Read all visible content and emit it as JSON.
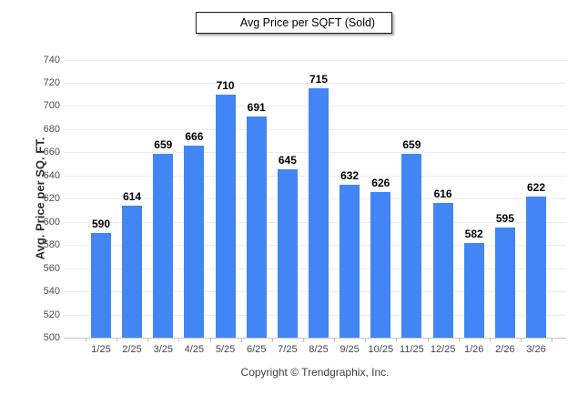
{
  "legend": {
    "label": "Avg Price per SQFT (Sold)",
    "swatch_color": "#4285F4"
  },
  "y_axis_title": "Avg. Price per SQ. FT.",
  "footer": {
    "copyright": "Copyright © Trendgraphix, Inc."
  },
  "colors": {
    "bar": "#4285F4",
    "gridline": "#ededed",
    "axis_line": "#c6c6c6",
    "value_label": "#000000",
    "tick_label": "#4d4d4d",
    "background": "#ffffff"
  },
  "chart_data": {
    "type": "bar",
    "title": "",
    "categories": [
      "1/25",
      "2/25",
      "3/25",
      "4/25",
      "5/25",
      "6/25",
      "7/25",
      "8/25",
      "9/25",
      "10/25",
      "11/25",
      "12/25",
      "1/26",
      "2/26",
      "3/26"
    ],
    "values": [
      590,
      614,
      659,
      666,
      710,
      691,
      645,
      715,
      632,
      626,
      659,
      616,
      582,
      595,
      622
    ],
    "series_name": "Avg Price per SQFT (Sold)",
    "xlabel": "",
    "ylabel": "Avg. Price per SQ. FT.",
    "ylim": [
      500,
      740
    ],
    "ytick_step": 20,
    "grid": true,
    "value_labels_shown": true,
    "legend_position": "top-center",
    "bar_color": "#4285F4"
  }
}
